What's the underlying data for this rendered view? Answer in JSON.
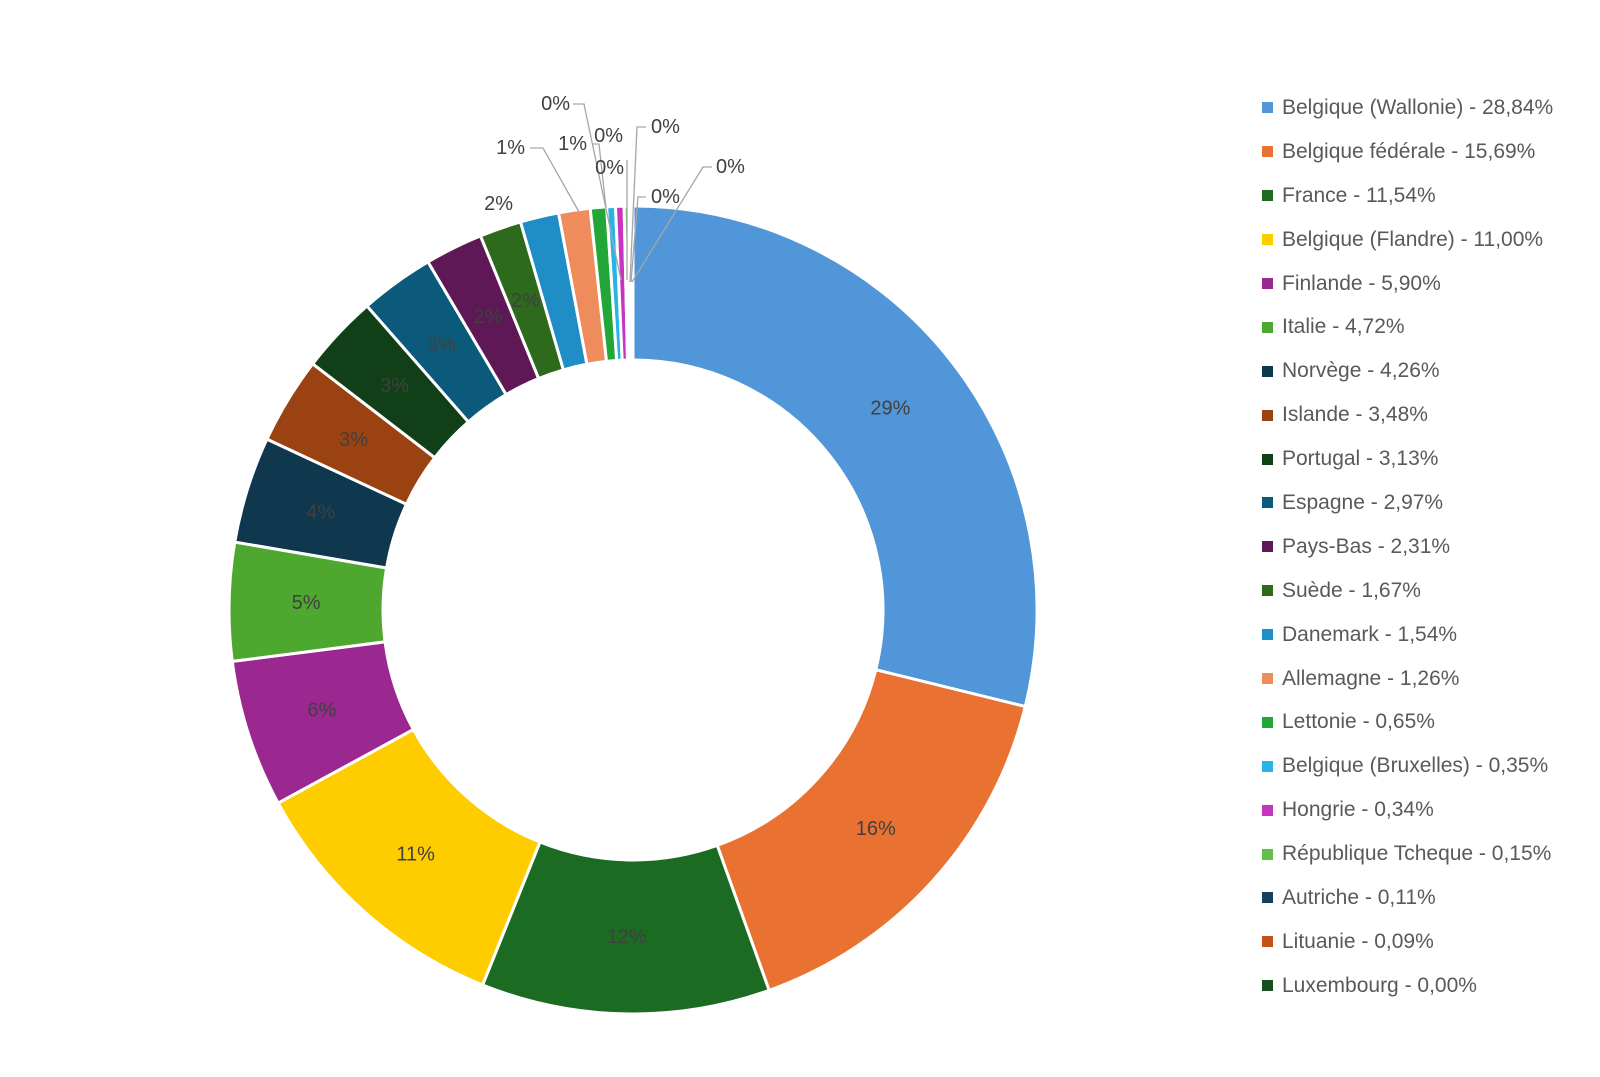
{
  "chart_data": {
    "type": "pie",
    "donut": true,
    "legend_position": "right",
    "series": [
      {
        "name": "Belgique (Wallonie) - 28,84%",
        "value": 28.84,
        "label": "29%",
        "color": "#5096D9"
      },
      {
        "name": "Belgique fédérale - 15,69%",
        "value": 15.69,
        "label": "16%",
        "color": "#E97132"
      },
      {
        "name": "France - 11,54%",
        "value": 11.54,
        "label": "12%",
        "color": "#1B6B23"
      },
      {
        "name": "Belgique (Flandre) - 11,00%",
        "value": 11.0,
        "label": "11%",
        "color": "#FFCC00"
      },
      {
        "name": "Finlande - 5,90%",
        "value": 5.9,
        "label": "6%",
        "color": "#9B2891"
      },
      {
        "name": "Italie - 4,72%",
        "value": 4.72,
        "label": "5%",
        "color": "#4EA72E"
      },
      {
        "name": "Norvège - 4,26%",
        "value": 4.26,
        "label": "4%",
        "color": "#0F374E"
      },
      {
        "name": "Islande - 3,48%",
        "value": 3.48,
        "label": "3%",
        "color": "#9A4212"
      },
      {
        "name": "Portugal - 3,13%",
        "value": 3.13,
        "label": "3%",
        "color": "#113F17"
      },
      {
        "name": "Espagne - 2,97%",
        "value": 2.97,
        "label": "3%",
        "color": "#0B5A7B"
      },
      {
        "name": "Pays-Bas - 2,31%",
        "value": 2.31,
        "label": "2%",
        "color": "#5E1856"
      },
      {
        "name": "Suède - 1,67%",
        "value": 1.67,
        "label": "2%",
        "color": "#2D6A1C"
      },
      {
        "name": "Danemark - 1,54%",
        "value": 1.54,
        "label": "2%",
        "color": "#1F8DC6"
      },
      {
        "name": "Allemagne - 1,26%",
        "value": 1.26,
        "label": "1%",
        "color": "#EE8C5C"
      },
      {
        "name": "Lettonie - 0,65%",
        "value": 0.65,
        "label": "1%",
        "color": "#23A638"
      },
      {
        "name": "Belgique (Bruxelles) - 0,35%",
        "value": 0.35,
        "label": "0%",
        "color": "#2AB4E4"
      },
      {
        "name": "Hongrie - 0,34%",
        "value": 0.34,
        "label": "0%",
        "color": "#C734BF"
      },
      {
        "name": "République Tcheque - 0,15%",
        "value": 0.15,
        "label": "0%",
        "color": "#62BF4A"
      },
      {
        "name": "Autriche - 0,11%",
        "value": 0.11,
        "label": "0%",
        "color": "#14405E"
      },
      {
        "name": "Lituanie - 0,09%",
        "value": 0.09,
        "label": "0%",
        "color": "#C4501C"
      },
      {
        "name": "Luxembourg - 0,00%",
        "value": 0.0,
        "label": "0%",
        "color": "#174D1F"
      }
    ]
  }
}
